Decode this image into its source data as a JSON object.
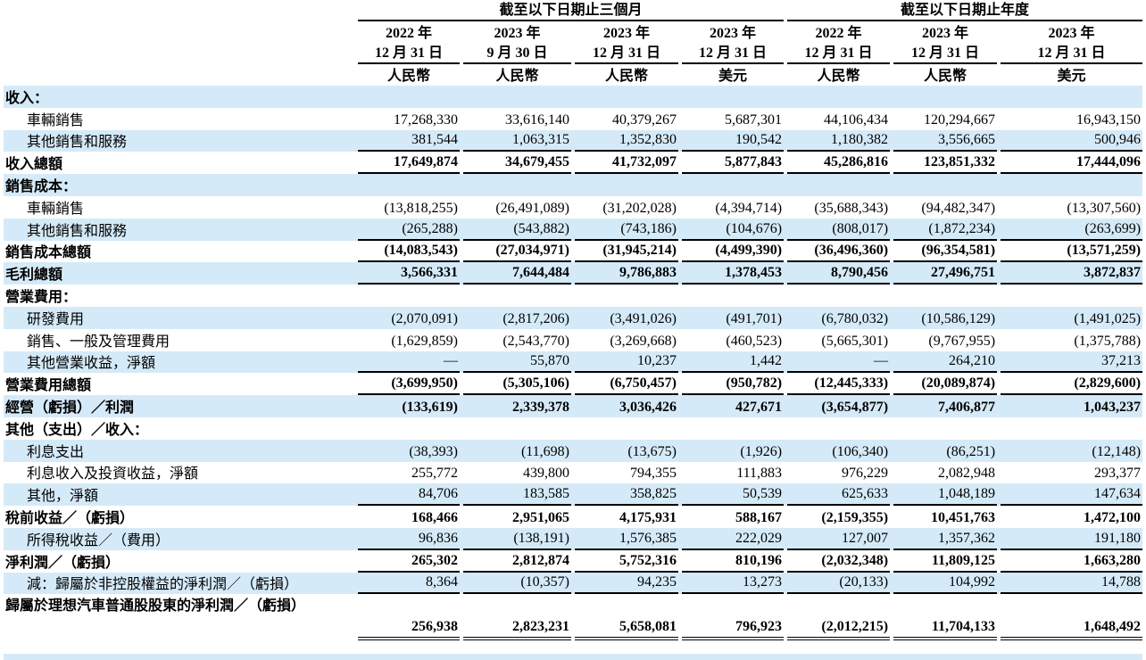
{
  "header": {
    "groups": [
      "截至以下日期止三個月",
      "截至以下日期止年度"
    ],
    "columns": [
      {
        "year": "2022 年",
        "date": "12 月 31 日",
        "currency": "人民幣"
      },
      {
        "year": "2023 年",
        "date": "9 月 30 日",
        "currency": "人民幣"
      },
      {
        "year": "2023 年",
        "date": "12 月 31 日",
        "currency": "人民幣"
      },
      {
        "year": "2023 年",
        "date": "12 月 31 日",
        "currency": "美元"
      },
      {
        "year": "2022 年",
        "date": "12 月 31 日",
        "currency": "人民幣"
      },
      {
        "year": "2023 年",
        "date": "12 月 31 日",
        "currency": "人民幣"
      },
      {
        "year": "2023 年",
        "date": "12 月 31 日",
        "currency": "美元"
      }
    ]
  },
  "rows": [
    {
      "label": "收入：",
      "values": []
    },
    {
      "label": "車輛銷售",
      "values": [
        "17,268,330",
        "33,616,140",
        "40,379,267",
        "5,687,301",
        "44,106,434",
        "120,294,667",
        "16,943,150"
      ]
    },
    {
      "label": "其他銷售和服務",
      "values": [
        "381,544",
        "1,063,315",
        "1,352,830",
        "190,542",
        "1,180,382",
        "3,556,665",
        "500,946"
      ]
    },
    {
      "label": "收入總額",
      "values": [
        "17,649,874",
        "34,679,455",
        "41,732,097",
        "5,877,843",
        "45,286,816",
        "123,851,332",
        "17,444,096"
      ]
    },
    {
      "label": "銷售成本：",
      "values": []
    },
    {
      "label": "車輛銷售",
      "values": [
        "(13,818,255)",
        "(26,491,089)",
        "(31,202,028)",
        "(4,394,714)",
        "(35,688,343)",
        "(94,482,347)",
        "(13,307,560)"
      ]
    },
    {
      "label": "其他銷售和服務",
      "values": [
        "(265,288)",
        "(543,882)",
        "(743,186)",
        "(104,676)",
        "(808,017)",
        "(1,872,234)",
        "(263,699)"
      ]
    },
    {
      "label": "銷售成本總額",
      "values": [
        "(14,083,543)",
        "(27,034,971)",
        "(31,945,214)",
        "(4,499,390)",
        "(36,496,360)",
        "(96,354,581)",
        "(13,571,259)"
      ]
    },
    {
      "label": "毛利總額",
      "values": [
        "3,566,331",
        "7,644,484",
        "9,786,883",
        "1,378,453",
        "8,790,456",
        "27,496,751",
        "3,872,837"
      ]
    },
    {
      "label": "營業費用：",
      "values": []
    },
    {
      "label": "研發費用",
      "values": [
        "(2,070,091)",
        "(2,817,206)",
        "(3,491,026)",
        "(491,701)",
        "(6,780,032)",
        "(10,586,129)",
        "(1,491,025)"
      ]
    },
    {
      "label": "銷售、一般及管理費用",
      "values": [
        "(1,629,859)",
        "(2,543,770)",
        "(3,269,668)",
        "(460,523)",
        "(5,665,301)",
        "(9,767,955)",
        "(1,375,788)"
      ]
    },
    {
      "label": "其他營業收益，淨額",
      "values": [
        "—",
        "55,870",
        "10,237",
        "1,442",
        "—",
        "264,210",
        "37,213"
      ]
    },
    {
      "label": "營業費用總額",
      "values": [
        "(3,699,950)",
        "(5,305,106)",
        "(6,750,457)",
        "(950,782)",
        "(12,445,333)",
        "(20,089,874)",
        "(2,829,600)"
      ]
    },
    {
      "label": "經營（虧損）／利潤",
      "values": [
        "(133,619)",
        "2,339,378",
        "3,036,426",
        "427,671",
        "(3,654,877)",
        "7,406,877",
        "1,043,237"
      ]
    },
    {
      "label": "其他（支出）／收入：",
      "values": []
    },
    {
      "label": "利息支出",
      "values": [
        "(38,393)",
        "(11,698)",
        "(13,675)",
        "(1,926)",
        "(106,340)",
        "(86,251)",
        "(12,148)"
      ]
    },
    {
      "label": "利息收入及投資收益，淨額",
      "values": [
        "255,772",
        "439,800",
        "794,355",
        "111,883",
        "976,229",
        "2,082,948",
        "293,377"
      ]
    },
    {
      "label": "其他，淨額",
      "values": [
        "84,706",
        "183,585",
        "358,825",
        "50,539",
        "625,633",
        "1,048,189",
        "147,634"
      ]
    },
    {
      "label": "稅前收益／（虧損）",
      "values": [
        "168,466",
        "2,951,065",
        "4,175,931",
        "588,167",
        "(2,159,355)",
        "10,451,763",
        "1,472,100"
      ]
    },
    {
      "label": "所得稅收益／（費用）",
      "values": [
        "96,836",
        "(138,191)",
        "1,576,385",
        "222,029",
        "127,007",
        "1,357,362",
        "191,180"
      ]
    },
    {
      "label": "淨利潤／（虧損）",
      "values": [
        "265,302",
        "2,812,874",
        "5,752,316",
        "810,196",
        "(2,032,348)",
        "11,809,125",
        "1,663,280"
      ]
    },
    {
      "label": "減：歸屬於非控股權益的淨利潤／（虧損）",
      "values": [
        "8,364",
        "(10,357)",
        "94,235",
        "13,273",
        "(20,133)",
        "104,992",
        "14,788"
      ]
    },
    {
      "label": "歸屬於理想汽車普通股股東的淨利潤／（虧損）",
      "values": [
        "256,938",
        "2,823,231",
        "5,658,081",
        "796,923",
        "(2,012,215)",
        "11,704,133",
        "1,648,492"
      ]
    }
  ]
}
